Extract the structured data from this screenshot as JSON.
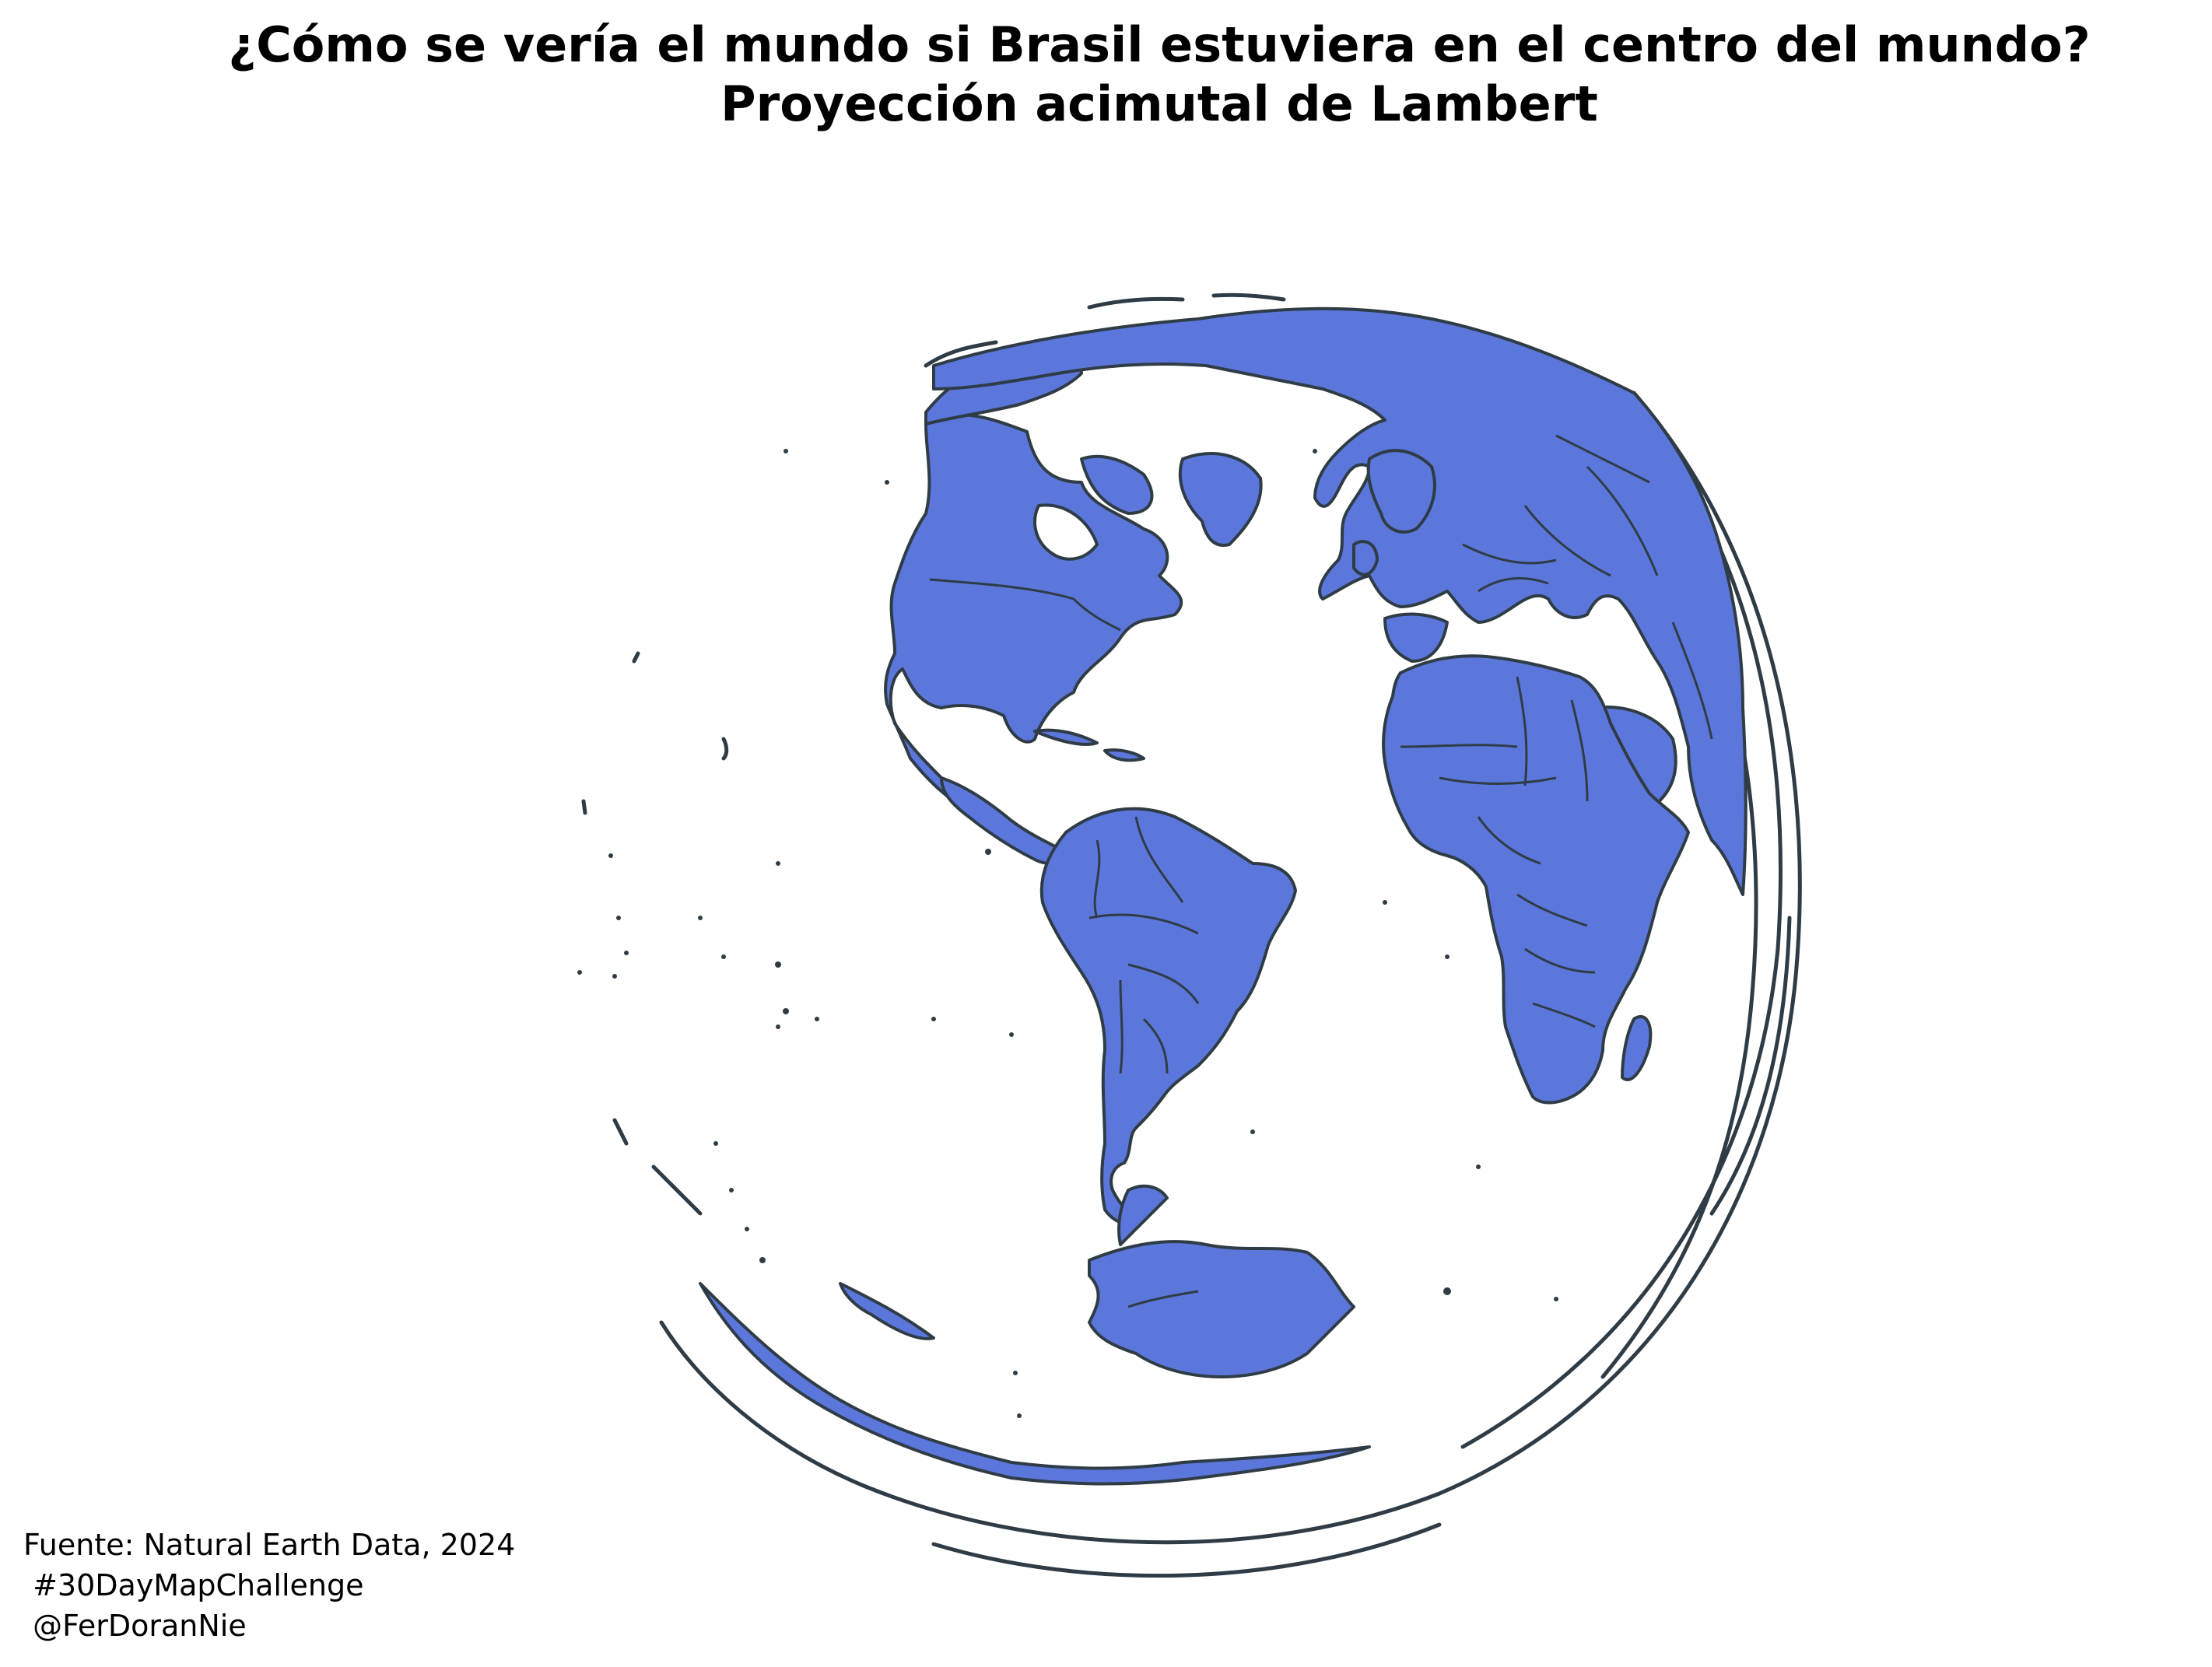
{
  "title": {
    "line1": "¿Cómo se vería el mundo si Brasil estuviera en el centro del mundo?",
    "line2": "Proyección acimutal de Lambert"
  },
  "footer": {
    "line1": "Fuente: Natural Earth Data, 2024",
    "line2": " #30DayMapChallenge",
    "line3": " @FerDoranNie"
  },
  "colors": {
    "land": "#5b77db",
    "outline": "#2f3c46",
    "background": "#ffffff"
  },
  "map": {
    "projection": "Lambert azimuthal equal-area",
    "center_country": "Brasil"
  }
}
